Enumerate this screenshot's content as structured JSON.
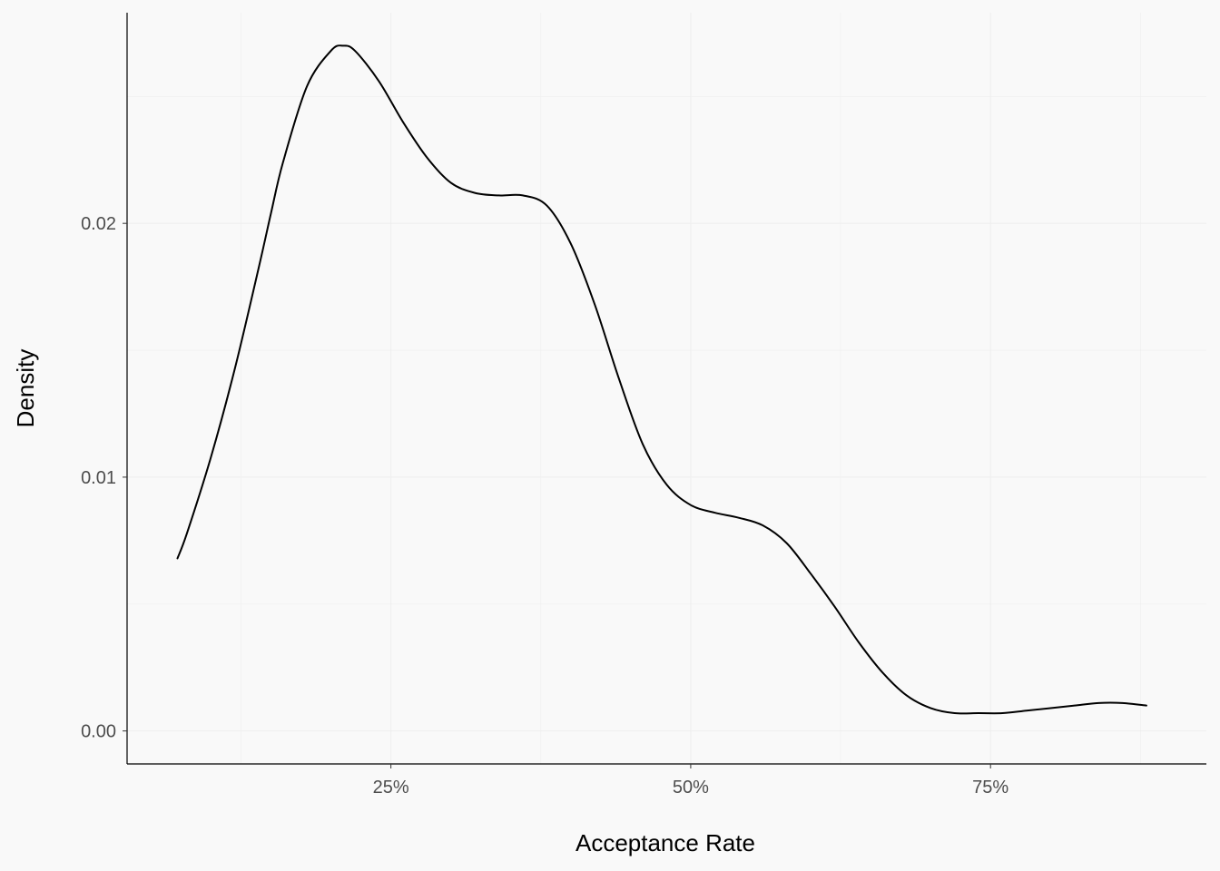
{
  "colors": {
    "background": "#f9f9f9",
    "gridline": "#eeeeee",
    "axis_line": "#000000",
    "curve": "#000000",
    "tick_text": "#4d4d4d"
  },
  "chart_data": {
    "type": "line",
    "xlabel": "Acceptance Rate",
    "ylabel": "Density",
    "xlim": [
      3,
      93
    ],
    "ylim": [
      -0.0013,
      0.0283
    ],
    "x_ticks": [
      {
        "value": 25,
        "label": "25%"
      },
      {
        "value": 50,
        "label": "50%"
      },
      {
        "value": 75,
        "label": "75%"
      }
    ],
    "y_ticks": [
      {
        "value": 0.0,
        "label": "0.00"
      },
      {
        "value": 0.01,
        "label": "0.01"
      },
      {
        "value": 0.02,
        "label": "0.02"
      }
    ],
    "x_minor_gridlines": [
      12.5,
      37.5,
      62.5,
      87.5
    ],
    "y_minor_gridlines": [
      0.005,
      0.015,
      0.025
    ],
    "grid": true,
    "legend": "none",
    "series": [
      {
        "x": [
          7.2,
          8.0,
          10.0,
          12.0,
          14.0,
          15.0,
          16.0,
          18.0,
          20.0,
          21.0,
          22.0,
          24.0,
          26.0,
          28.0,
          30.0,
          32.0,
          34.0,
          36.0,
          38.0,
          40.0,
          42.0,
          44.0,
          46.0,
          48.0,
          50.0,
          52.0,
          54.0,
          56.0,
          58.0,
          60.0,
          62.0,
          64.0,
          66.0,
          68.0,
          70.0,
          72.0,
          74.0,
          76.0,
          78.0,
          80.0,
          82.0,
          84.0,
          86.0,
          88.0
        ],
        "y": [
          0.0068,
          0.0078,
          0.0108,
          0.0143,
          0.0183,
          0.0204,
          0.0224,
          0.0254,
          0.0268,
          0.027,
          0.0268,
          0.0256,
          0.024,
          0.0226,
          0.0216,
          0.0212,
          0.0211,
          0.0211,
          0.0207,
          0.0192,
          0.0168,
          0.0139,
          0.0113,
          0.0097,
          0.0089,
          0.0086,
          0.0084,
          0.0081,
          0.0074,
          0.0062,
          0.0049,
          0.0035,
          0.0023,
          0.0014,
          0.0009,
          0.0007,
          0.0007,
          0.0007,
          0.0008,
          0.0009,
          0.001,
          0.0011,
          0.0011,
          0.001
        ]
      }
    ]
  }
}
